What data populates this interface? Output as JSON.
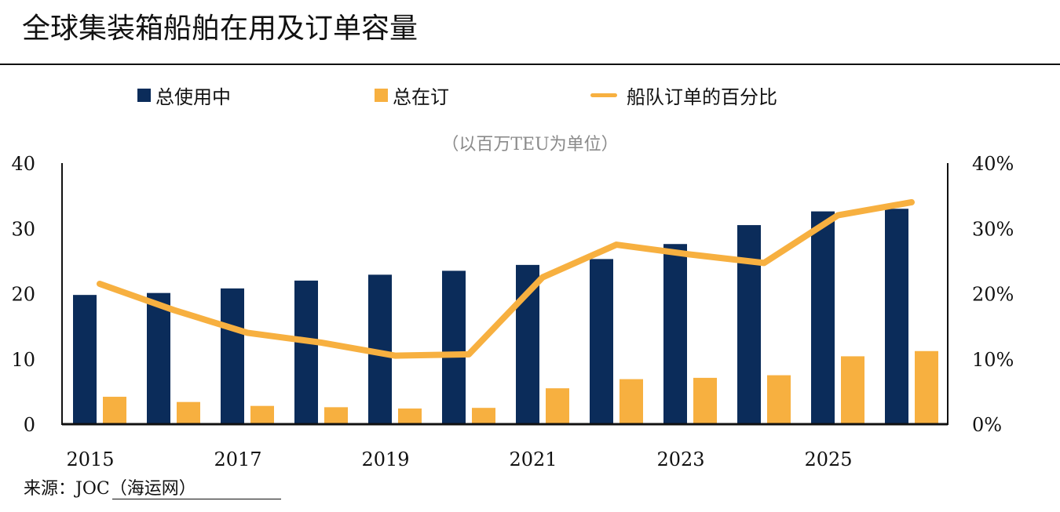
{
  "title": "全球集装箱船舶在用及订单容量",
  "subtitle": "（以百万TEU为单位）",
  "source": "来源：JOC（海运网）",
  "colors": {
    "in_use": "#0b2c5a",
    "on_order": "#f7b040",
    "line": "#f7b040",
    "axis": "#111111"
  },
  "legend": [
    {
      "label": "总使用中",
      "swatch": "square",
      "color": "#0b2c5a"
    },
    {
      "label": "总在订",
      "swatch": "square",
      "color": "#f7b040"
    },
    {
      "label": "船队订单的百分比",
      "swatch": "line",
      "color": "#f7b040"
    }
  ],
  "chart_data": {
    "type": "bar",
    "categories": [
      "2015",
      "2016",
      "2017",
      "2018",
      "2019",
      "2020",
      "2021",
      "2022",
      "2023",
      "2024",
      "2025",
      "2026"
    ],
    "x_tick_labels": [
      "2015",
      "2017",
      "2019",
      "2021",
      "2023",
      "2025"
    ],
    "series": [
      {
        "name": "总使用中",
        "type": "bar",
        "axis": "left",
        "values": [
          19.8,
          20.1,
          20.8,
          22.0,
          22.9,
          23.5,
          24.4,
          25.3,
          27.6,
          30.5,
          32.6,
          33.0
        ]
      },
      {
        "name": "总在订",
        "type": "bar",
        "axis": "left",
        "values": [
          4.2,
          3.4,
          2.8,
          2.6,
          2.4,
          2.5,
          5.5,
          6.9,
          7.1,
          7.5,
          10.4,
          11.2
        ]
      },
      {
        "name": "船队订单的百分比",
        "type": "line",
        "axis": "right",
        "values": [
          21.5,
          17.5,
          14.0,
          12.5,
          10.5,
          10.7,
          22.5,
          27.5,
          26.0,
          24.7,
          32.0,
          34.0
        ]
      }
    ],
    "y_left": {
      "ylim": [
        0,
        40
      ],
      "ticks": [
        "0",
        "10",
        "20",
        "30",
        "40"
      ]
    },
    "y_right": {
      "ylim": [
        0,
        40
      ],
      "ticks": [
        "0%",
        "10%",
        "20%",
        "30%",
        "40%"
      ],
      "unit": "%"
    },
    "legend_position": "top",
    "grid": false
  }
}
